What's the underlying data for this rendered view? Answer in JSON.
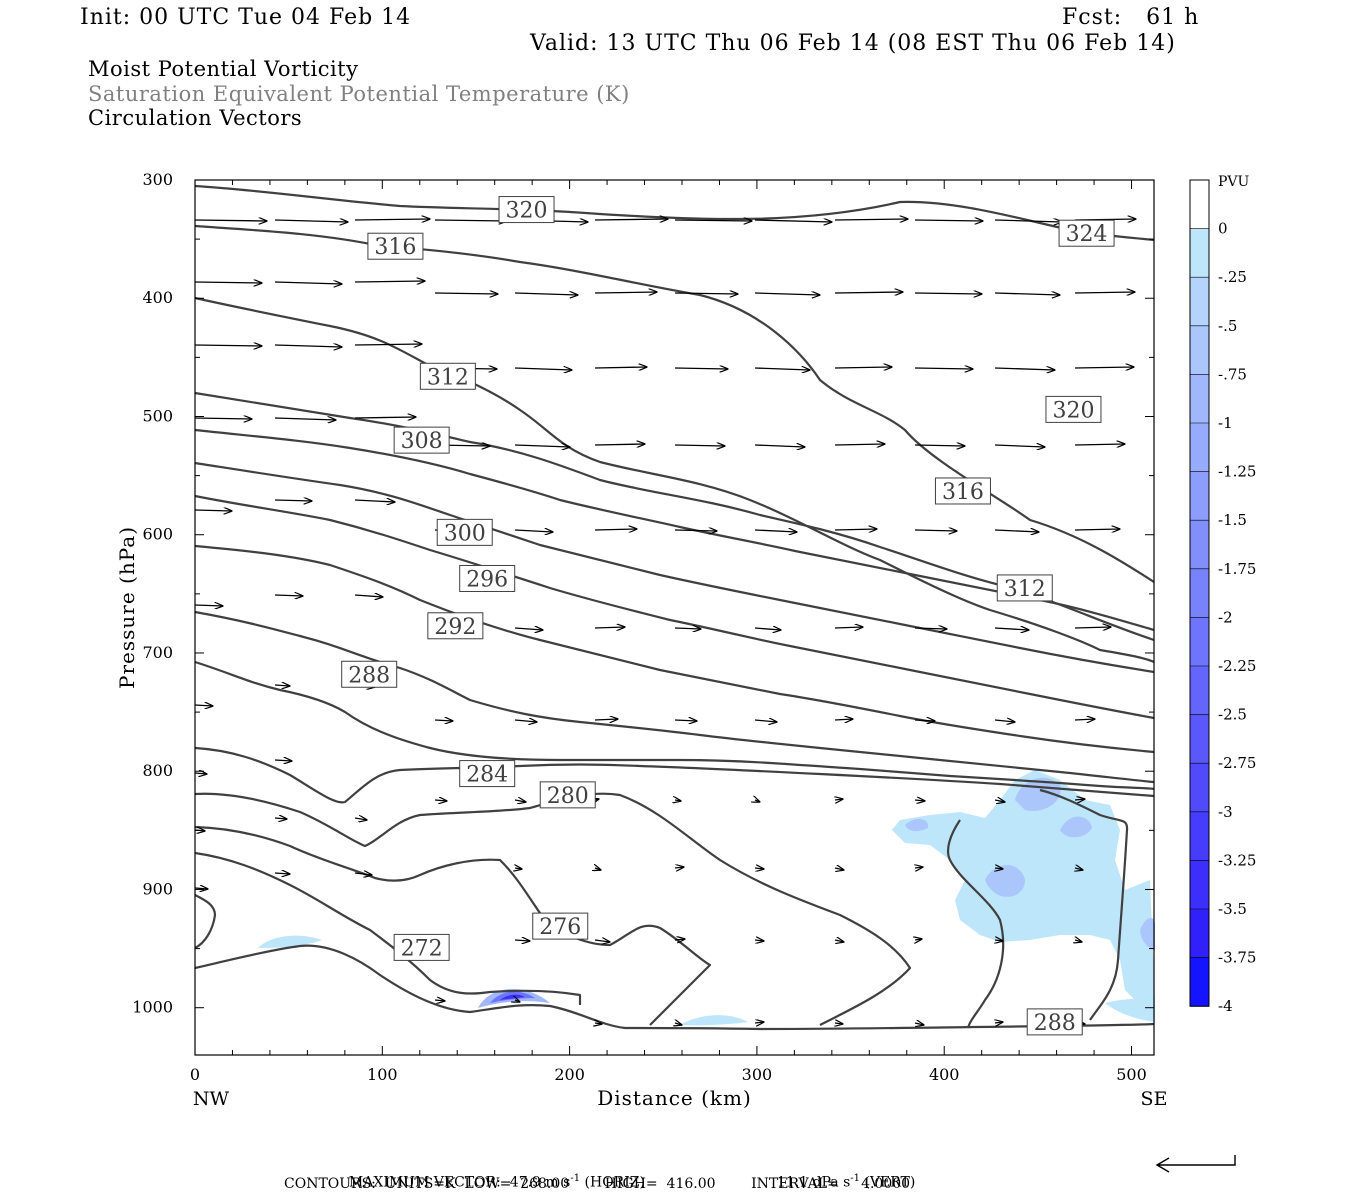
{
  "header": {
    "init": "Init: 00 UTC Tue 04 Feb 14",
    "fcst": "Fcst:   61 h",
    "valid": "Valid: 13 UTC Thu 06 Feb 14 (08 EST Thu 06 Feb 14)"
  },
  "titles": {
    "line1": "Moist Potential Vorticity",
    "line2": "Saturation Equivalent Potential Temperature (K)",
    "line3": "Circulation Vectors"
  },
  "chart_data": {
    "type": "cross-section",
    "xlabel": "Distance (km)",
    "ylabel": "Pressure (hPa)",
    "xlim": [
      0,
      512
    ],
    "ylim": [
      300,
      1040
    ],
    "y_inverted": true,
    "x_ticks": [
      0,
      100,
      200,
      300,
      400,
      500
    ],
    "y_ticks": [
      300,
      400,
      500,
      600,
      700,
      800,
      900,
      1000
    ],
    "x_end_labels": {
      "left": "NW",
      "right": "SE"
    },
    "colorbar": {
      "title": "PVU",
      "labels": [
        "0",
        "-.25",
        "-.5",
        "-.75",
        "-1",
        "-1.25",
        "-1.5",
        "-1.75",
        "-2",
        "-2.25",
        "-2.5",
        "-2.75",
        "-3",
        "-3.25",
        "-3.5",
        "-3.75",
        "-4"
      ],
      "colors": [
        "#ffffff",
        "#bee6fa",
        "#b4d4fb",
        "#aac6fb",
        "#a0b8fb",
        "#96abfb",
        "#8c9dfb",
        "#828ffb",
        "#7882fb",
        "#6e74fb",
        "#6466fb",
        "#5a58fb",
        "#504afb",
        "#463cfb",
        "#3c2efb",
        "#3220fb",
        "#1414ff"
      ]
    },
    "contour_labels": [
      {
        "label": "320",
        "x": 177,
        "p": 325
      },
      {
        "label": "324",
        "x": 476,
        "p": 345
      },
      {
        "label": "316",
        "x": 107,
        "p": 356
      },
      {
        "label": "312",
        "x": 135,
        "p": 466
      },
      {
        "label": "320",
        "x": 469,
        "p": 494
      },
      {
        "label": "308",
        "x": 121,
        "p": 520
      },
      {
        "label": "316",
        "x": 410,
        "p": 563
      },
      {
        "label": "300",
        "x": 144,
        "p": 598
      },
      {
        "label": "296",
        "x": 156,
        "p": 637
      },
      {
        "label": "312",
        "x": 443,
        "p": 645
      },
      {
        "label": "292",
        "x": 139,
        "p": 677
      },
      {
        "label": "288",
        "x": 93,
        "p": 718
      },
      {
        "label": "284",
        "x": 156,
        "p": 802
      },
      {
        "label": "280",
        "x": 199,
        "p": 820
      },
      {
        "label": "276",
        "x": 195,
        "p": 931
      },
      {
        "label": "272",
        "x": 121,
        "p": 949
      },
      {
        "label": "288",
        "x": 459,
        "p": 1012
      }
    ],
    "pv_anomalies": [
      {
        "x": 450,
        "p": 830,
        "min": -1.0
      },
      {
        "x": 430,
        "p": 895,
        "min": -0.75
      },
      {
        "x": 170,
        "p": 993,
        "min": -2.75
      },
      {
        "x": 505,
        "p": 930,
        "min": -0.5
      },
      {
        "x": 385,
        "p": 845,
        "min": -0.5
      },
      {
        "x": 50,
        "p": 960,
        "min": -0.25
      },
      {
        "x": 285,
        "p": 1015,
        "min": -0.25
      }
    ]
  },
  "footer": {
    "max_vector": "MAXIMUM VECTOR:  47.9 m s",
    "max_vector_exp": "-1",
    "max_vector_tail": " (HORIZ)",
    "vert": "11.1 dPa s",
    "vert_exp": "-1",
    "vert_tail": " (VERT)",
    "contours": "CONTOURS:  UNITS=K  LOW=  268.00        HIGH=  416.00        INTERVAL=     4.0000"
  }
}
